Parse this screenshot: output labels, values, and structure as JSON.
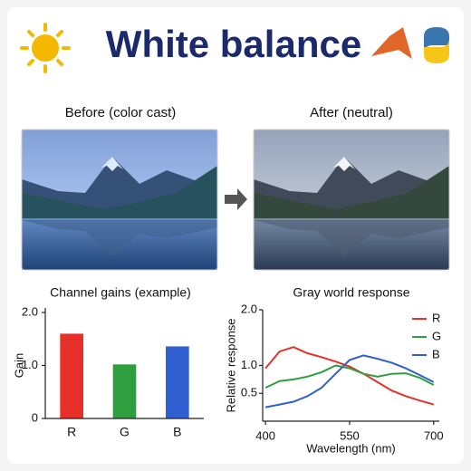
{
  "header": {
    "title": "White balance"
  },
  "panels": [
    {
      "caption": "Before (color cast)"
    },
    {
      "caption": "After (neutral)"
    }
  ],
  "chart_data": [
    {
      "type": "bar",
      "title": "Channel gains (example)",
      "y_label": "Gain",
      "categories": [
        "R",
        "G",
        "B"
      ],
      "values": [
        1.6,
        1.02,
        1.36
      ],
      "colors": [
        "#e8302a",
        "#2e9e3e",
        "#2f5fd0"
      ],
      "ylim": [
        0,
        2.0
      ],
      "yticks": [
        0,
        {
          "value": 1.0,
          "label": "1.0"
        },
        {
          "value": 2.0,
          "label": "2.0"
        }
      ]
    },
    {
      "type": "line",
      "title": "Gray world response",
      "x_label": "Wavelength (nm)",
      "y_label": "Relative response",
      "x": [
        400,
        425,
        450,
        475,
        500,
        525,
        550,
        575,
        600,
        625,
        650,
        675,
        700
      ],
      "series": [
        {
          "name": "R",
          "color": "#e8302a",
          "values": [
            0.95,
            1.25,
            1.33,
            1.22,
            1.15,
            1.07,
            0.98,
            0.85,
            0.7,
            0.55,
            0.45,
            0.37,
            0.3
          ]
        },
        {
          "name": "G",
          "color": "#2e9e3e",
          "values": [
            0.6,
            0.72,
            0.75,
            0.8,
            0.88,
            1.0,
            0.95,
            0.85,
            0.8,
            0.85,
            0.86,
            0.78,
            0.65
          ]
        },
        {
          "name": "B",
          "color": "#2f5fd0",
          "values": [
            0.25,
            0.3,
            0.35,
            0.45,
            0.6,
            0.85,
            1.1,
            1.18,
            1.12,
            1.05,
            0.95,
            0.83,
            0.7
          ]
        }
      ],
      "xlim": [
        395,
        710
      ],
      "xticks": [
        400,
        550,
        700
      ],
      "ylim": [
        0,
        2.0
      ],
      "yticks": [
        {
          "value": 0.5,
          "label": "0.5"
        },
        {
          "value": 1.0,
          "label": "1.0"
        },
        {
          "value": 2.0,
          "label": "2.0"
        }
      ],
      "legend": "upper right"
    }
  ]
}
